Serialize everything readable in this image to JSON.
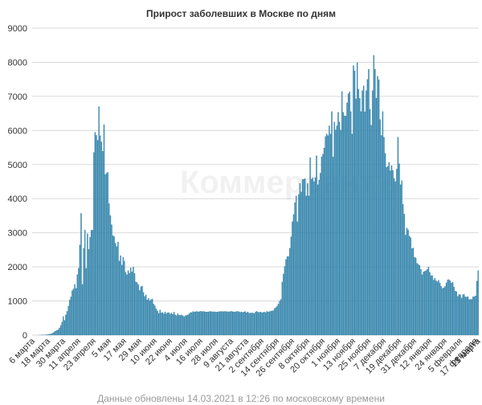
{
  "chart_data": {
    "type": "bar",
    "title": "Прирост заболевших в Москве по дням",
    "xlabel": "",
    "ylabel": "",
    "ylim": [
      0,
      9000
    ],
    "yticks": [
      0,
      1000,
      2000,
      3000,
      4000,
      5000,
      6000,
      7000,
      8000,
      9000
    ],
    "grid": true,
    "legend": "none",
    "bar_color": "#3a8fb7",
    "x_start": "2020-03-06",
    "x_end": "2021-03-13",
    "tick_labels": [
      "6 марта",
      "18 марта",
      "30 марта",
      "11 апреля",
      "23 апреля",
      "5 мая",
      "17 мая",
      "29 мая",
      "10 июня",
      "22 июня",
      "4 июля",
      "16 июля",
      "28 июля",
      "9 августа",
      "21 августа",
      "2 сентября",
      "14 сентября",
      "26 сентября",
      "8 октября",
      "20 октября",
      "1 ноября",
      "13 ноября",
      "25 ноября",
      "7 декабря",
      "19 декабря",
      "31 декабря",
      "12 января",
      "24 января",
      "5 февраля",
      "17 февраля",
      "1 марта",
      "13 марта"
    ],
    "values": [
      0,
      0,
      0,
      0,
      0,
      1,
      1,
      4,
      5,
      6,
      9,
      14,
      18,
      26,
      31,
      48,
      71,
      98,
      120,
      137,
      157,
      212,
      290,
      387,
      546,
      434,
      595,
      697,
      857,
      1030,
      1124,
      1306,
      1355,
      1489,
      1370,
      1774,
      1959,
      2649,
      3570,
      1489,
      2548,
      3083,
      1958,
      2971,
      2512,
      2871,
      3075,
      3083,
      5358,
      5948,
      5858,
      5714,
      6703,
      5846,
      5667,
      5392,
      6169,
      4712,
      4748,
      4776,
      3855,
      3505,
      3238,
      2913,
      2893,
      2699,
      2595,
      2731,
      2173,
      2331,
      2054,
      2286,
      2170,
      1842,
      1774,
      1896,
      1817,
      1977,
      1854,
      1998,
      1807,
      1559,
      1543,
      1480,
      1311,
      1421,
      1436,
      1257,
      1135,
      1180,
      1032,
      1079,
      1007,
      1048,
      1061,
      910,
      863,
      769,
      710,
      640,
      740,
      653,
      666,
      625,
      681,
      628,
      659,
      660,
      618,
      649,
      612,
      678,
      597,
      575,
      628,
      585,
      578,
      599,
      569,
      542,
      571,
      580,
      597,
      633,
      667,
      662,
      694,
      678,
      692,
      695,
      684,
      691,
      700,
      693,
      696,
      691,
      681,
      682,
      680,
      696,
      693,
      688,
      684,
      685,
      676,
      680,
      686,
      692,
      697,
      688,
      694,
      696,
      693,
      689,
      685,
      692,
      697,
      688,
      684,
      676,
      698,
      694,
      688,
      671,
      683,
      668,
      682,
      695,
      658,
      683,
      645,
      652,
      649,
      652,
      634,
      676,
      698,
      675,
      668,
      683,
      658,
      666,
      679,
      661,
      697,
      679,
      692,
      700,
      715,
      719,
      784,
      808,
      849,
      912,
      1000,
      1050,
      1560,
      1792,
      2016,
      2217,
      2304,
      2306,
      2548,
      2884,
      3327,
      3537,
      3888,
      4082,
      3327,
      4128,
      4451,
      4200,
      4569,
      4573,
      4587,
      4082,
      4444,
      4082,
      5204,
      4573,
      4610,
      4501,
      4617,
      5260,
      4412,
      4545,
      4750,
      5229,
      5305,
      5489,
      5825,
      5903,
      5851,
      6138,
      5895,
      6556,
      5224,
      6250,
      6019,
      6138,
      6536,
      6253,
      6016,
      7141,
      6532,
      6430,
      6427,
      6811,
      7080,
      7138,
      6556,
      5896,
      7902,
      7750,
      6930,
      7993,
      7211,
      6943,
      6555,
      7168,
      7310,
      6549,
      7165,
      7498,
      7797,
      6625,
      6152,
      7168,
      8203,
      7797,
      6950,
      7589,
      7489,
      6325,
      5855,
      6556,
      5804,
      5327,
      4921,
      4952,
      5066,
      4821,
      4970,
      4832,
      4599,
      4502,
      4870,
      5807,
      5027,
      4412,
      4532,
      3835,
      3548,
      2936,
      3143,
      3088,
      2905,
      2860,
      2538,
      2557,
      2283,
      2262,
      2108,
      2077,
      2048,
      1930,
      1774,
      1855,
      1874,
      1893,
      1930,
      1998,
      1840,
      1741,
      1749,
      1617,
      1671,
      1593,
      1566,
      1610,
      1525,
      1432,
      1368,
      1390,
      1428,
      1536,
      1620,
      1632,
      1593,
      1526,
      1555,
      1414,
      1292,
      1277,
      1138,
      1195,
      1180,
      1089,
      1191,
      1197,
      1122,
      1115,
      1130,
      1044,
      1050,
      1050,
      1123,
      1125,
      1153,
      1587,
      1893
    ]
  },
  "watermark": "Коммерсантъ",
  "footer": "Данные обновлены 14.03.2021 в 12:26 по московскому времени"
}
